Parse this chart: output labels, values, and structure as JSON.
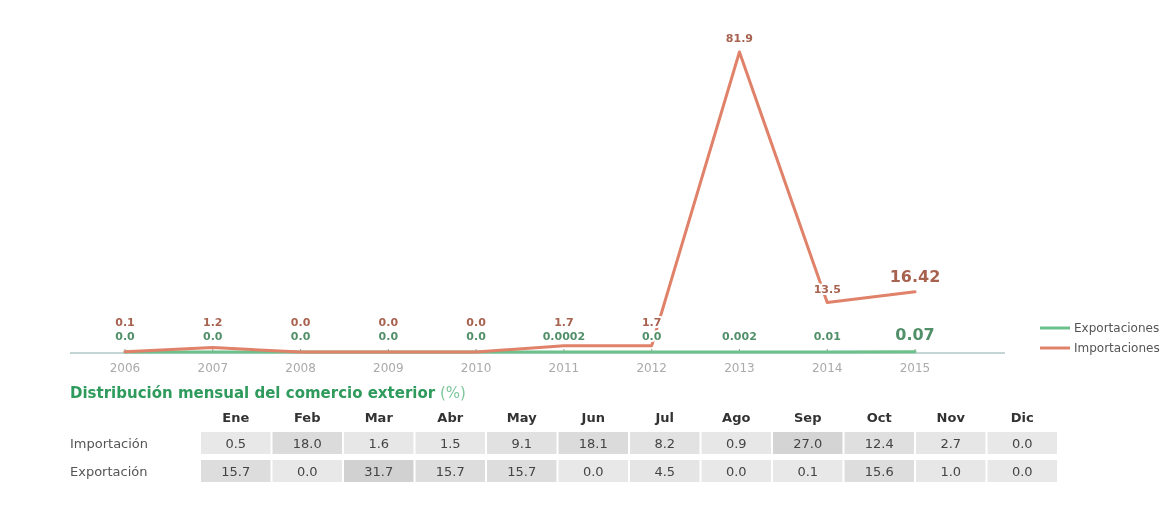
{
  "chart_data": [
    {
      "type": "line",
      "categories": [
        "2006",
        "2007",
        "2008",
        "2009",
        "2010",
        "2011",
        "2012",
        "2013",
        "2014",
        "2015"
      ],
      "series": [
        {
          "name": "Exportaciones",
          "color": "#6cc08a",
          "values": [
            0.0,
            0.0,
            0.0,
            0.0,
            0.0,
            0.0002,
            0.0,
            0.002,
            0.01,
            0.07
          ],
          "value_labels": [
            "0.0",
            "0.0",
            "0.0",
            "0.0",
            "0.0",
            "0.0002",
            "0.0",
            "0.002",
            "0.01",
            "0.07"
          ]
        },
        {
          "name": "Importaciones",
          "color": "#e0826a",
          "values": [
            0.1,
            1.2,
            0.0,
            0.0,
            0.0,
            1.7,
            1.7,
            81.9,
            13.5,
            16.42
          ],
          "value_labels": [
            "0.1",
            "1.2",
            "0.0",
            "0.0",
            "0.0",
            "1.7",
            "1.7",
            "81.9",
            "13.5",
            "16.42"
          ]
        }
      ],
      "legend": "right",
      "marker": "none",
      "grid": false
    },
    {
      "type": "heatmap",
      "title": "Distribución mensual del comercio exterior (%)",
      "categories": [
        "Ene",
        "Feb",
        "Mar",
        "Abr",
        "May",
        "Jun",
        "Jul",
        "Ago",
        "Sep",
        "Oct",
        "Nov",
        "Dic"
      ],
      "y_categories": [
        "Importación",
        "Exportación"
      ],
      "cells": [
        [
          0.5,
          18.0,
          1.6,
          1.5,
          9.1,
          18.1,
          8.2,
          0.9,
          27.0,
          12.4,
          2.7,
          0.0
        ],
        [
          15.7,
          0.0,
          31.7,
          15.7,
          15.7,
          0.0,
          4.5,
          0.0,
          0.1,
          15.6,
          1.0,
          0.0
        ]
      ],
      "cell_labels": [
        [
          "0.5",
          "18.0",
          "1.6",
          "1.5",
          "9.1",
          "18.1",
          "8.2",
          "0.9",
          "27.0",
          "12.4",
          "2.7",
          "0.0"
        ],
        [
          "15.7",
          "0.0",
          "31.7",
          "15.7",
          "15.7",
          "0.0",
          "4.5",
          "0.0",
          "0.1",
          "15.6",
          "1.0",
          "0.0"
        ]
      ],
      "color": "#dcdcdc"
    }
  ]
}
